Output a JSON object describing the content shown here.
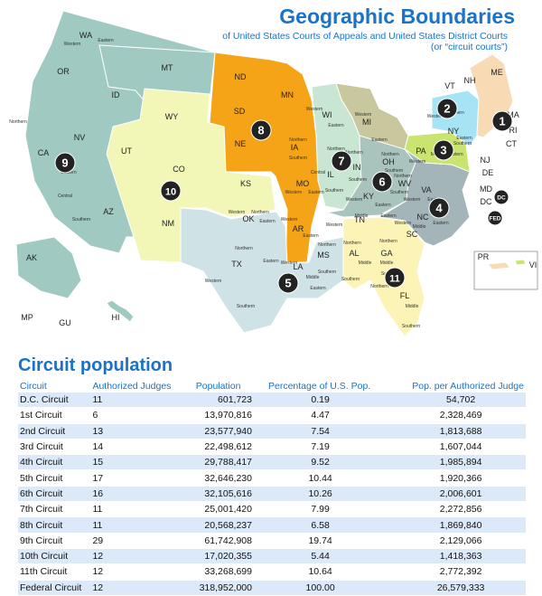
{
  "map": {
    "title": "Geographic Boundaries",
    "subtitle_line1": "of United States Courts of Appeals and United States District Courts",
    "subtitle_line2": "(or “circuit courts”)",
    "colors": {
      "c1": "#f8dab4",
      "c2": "#a6e3f5",
      "c3": "#c9e56f",
      "c4": "#a3b5b8",
      "c5": "#cfe2e5",
      "c6": "#a9c4bd",
      "c7": "#c9e6d2",
      "c8": "#f6a417",
      "c9": "#9fc9c1",
      "c10": "#f2f7b7",
      "c11": "#fbf4b6",
      "c7b": "#c8c79e",
      "badge": "#222222",
      "badge_text": "#ffffff"
    },
    "state_labels": [
      {
        "id": "WA",
        "text": "WA"
      },
      {
        "id": "OR",
        "text": "OR"
      },
      {
        "id": "CA",
        "text": "CA"
      },
      {
        "id": "NV",
        "text": "NV"
      },
      {
        "id": "ID",
        "text": "ID"
      },
      {
        "id": "MT",
        "text": "MT"
      },
      {
        "id": "WY",
        "text": "WY"
      },
      {
        "id": "UT",
        "text": "UT"
      },
      {
        "id": "AZ",
        "text": "AZ"
      },
      {
        "id": "CO",
        "text": "CO"
      },
      {
        "id": "NM",
        "text": "NM"
      },
      {
        "id": "ND",
        "text": "ND"
      },
      {
        "id": "SD",
        "text": "SD"
      },
      {
        "id": "NE",
        "text": "NE"
      },
      {
        "id": "KS",
        "text": "KS"
      },
      {
        "id": "OK",
        "text": "OK"
      },
      {
        "id": "TX",
        "text": "TX"
      },
      {
        "id": "MN",
        "text": "MN"
      },
      {
        "id": "IA",
        "text": "IA"
      },
      {
        "id": "MO",
        "text": "MO"
      },
      {
        "id": "AR",
        "text": "AR"
      },
      {
        "id": "LA",
        "text": "LA"
      },
      {
        "id": "WI",
        "text": "WI"
      },
      {
        "id": "IL",
        "text": "IL"
      },
      {
        "id": "MI",
        "text": "MI"
      },
      {
        "id": "IN",
        "text": "IN"
      },
      {
        "id": "OH",
        "text": "OH"
      },
      {
        "id": "KY",
        "text": "KY"
      },
      {
        "id": "TN",
        "text": "TN"
      },
      {
        "id": "MS",
        "text": "MS"
      },
      {
        "id": "AL",
        "text": "AL"
      },
      {
        "id": "GA",
        "text": "GA"
      },
      {
        "id": "FL",
        "text": "FL"
      },
      {
        "id": "SC",
        "text": "SC"
      },
      {
        "id": "NC",
        "text": "NC"
      },
      {
        "id": "VA",
        "text": "VA"
      },
      {
        "id": "WV",
        "text": "WV"
      },
      {
        "id": "PA",
        "text": "PA"
      },
      {
        "id": "NY",
        "text": "NY"
      },
      {
        "id": "VT",
        "text": "VT"
      },
      {
        "id": "NH",
        "text": "NH"
      },
      {
        "id": "ME",
        "text": "ME"
      },
      {
        "id": "MA",
        "text": "MA"
      },
      {
        "id": "RI",
        "text": "RI"
      },
      {
        "id": "CT",
        "text": "CT"
      },
      {
        "id": "NJ",
        "text": "NJ"
      },
      {
        "id": "DE",
        "text": "DE"
      },
      {
        "id": "MD",
        "text": "MD"
      },
      {
        "id": "DC",
        "text": "DC"
      },
      {
        "id": "AK",
        "text": "AK"
      },
      {
        "id": "HI",
        "text": "HI"
      },
      {
        "id": "PR",
        "text": "PR"
      },
      {
        "id": "VI",
        "text": "VI"
      },
      {
        "id": "MP",
        "text": "MP"
      },
      {
        "id": "GU",
        "text": "GU"
      }
    ],
    "district_labels": [
      {
        "id": "wa-e",
        "text": "Eastern"
      },
      {
        "id": "wa-w",
        "text": "Western"
      },
      {
        "id": "ca-n",
        "text": "Northern"
      },
      {
        "id": "ca-e",
        "text": "Eastern"
      },
      {
        "id": "ca-c",
        "text": "Central"
      },
      {
        "id": "ca-s",
        "text": "Southern"
      },
      {
        "id": "ok-w",
        "text": "Western"
      },
      {
        "id": "ok-n",
        "text": "Northern"
      },
      {
        "id": "ok-e",
        "text": "Eastern"
      },
      {
        "id": "tx-n",
        "text": "Northern"
      },
      {
        "id": "tx-w",
        "text": "Western"
      },
      {
        "id": "tx-e",
        "text": "Eastern"
      },
      {
        "id": "tx-s",
        "text": "Southern"
      },
      {
        "id": "ia-n",
        "text": "Northern"
      },
      {
        "id": "ia-s",
        "text": "Southern"
      },
      {
        "id": "mo-w",
        "text": "Western"
      },
      {
        "id": "mo-e",
        "text": "Eastern"
      },
      {
        "id": "ar-w",
        "text": "Western"
      },
      {
        "id": "ar-e",
        "text": "Eastern"
      },
      {
        "id": "la-w",
        "text": "Western"
      },
      {
        "id": "la-m",
        "text": "Middle"
      },
      {
        "id": "la-e",
        "text": "Eastern"
      },
      {
        "id": "wi-w",
        "text": "Western"
      },
      {
        "id": "wi-e",
        "text": "Eastern"
      },
      {
        "id": "il-n",
        "text": "Northern"
      },
      {
        "id": "il-c",
        "text": "Central"
      },
      {
        "id": "il-s",
        "text": "Southern"
      },
      {
        "id": "mi-w",
        "text": "Western"
      },
      {
        "id": "mi-e",
        "text": "Eastern"
      },
      {
        "id": "in-n",
        "text": "Northern"
      },
      {
        "id": "in-s",
        "text": "Southern"
      },
      {
        "id": "oh-n",
        "text": "Northern"
      },
      {
        "id": "oh-s",
        "text": "Southern"
      },
      {
        "id": "ky-w",
        "text": "Western"
      },
      {
        "id": "ky-e",
        "text": "Eastern"
      },
      {
        "id": "tn-w",
        "text": "Western"
      },
      {
        "id": "tn-m",
        "text": "Middle"
      },
      {
        "id": "tn-e",
        "text": "Eastern"
      },
      {
        "id": "ms-n",
        "text": "Northern"
      },
      {
        "id": "ms-s",
        "text": "Southern"
      },
      {
        "id": "al-n",
        "text": "Northern"
      },
      {
        "id": "al-m",
        "text": "Middle"
      },
      {
        "id": "al-s",
        "text": "Southern"
      },
      {
        "id": "ga-n",
        "text": "Northern"
      },
      {
        "id": "ga-m",
        "text": "Middle"
      },
      {
        "id": "ga-s",
        "text": "Southern"
      },
      {
        "id": "fl-n",
        "text": "Northern"
      },
      {
        "id": "fl-m",
        "text": "Middle"
      },
      {
        "id": "fl-s",
        "text": "Southern"
      },
      {
        "id": "nc-w",
        "text": "Western"
      },
      {
        "id": "nc-m",
        "text": "Middle"
      },
      {
        "id": "nc-e",
        "text": "Eastern"
      },
      {
        "id": "va-w",
        "text": "Western"
      },
      {
        "id": "va-e",
        "text": "Eastern"
      },
      {
        "id": "wv-n",
        "text": "Northern"
      },
      {
        "id": "wv-s",
        "text": "Southern"
      },
      {
        "id": "pa-w",
        "text": "Western"
      },
      {
        "id": "pa-m",
        "text": "Middle"
      },
      {
        "id": "pa-e",
        "text": "Eastern"
      },
      {
        "id": "ny-w",
        "text": "Western"
      },
      {
        "id": "ny-n",
        "text": "Northern"
      },
      {
        "id": "ny-e",
        "text": "Eastern"
      },
      {
        "id": "ny-s",
        "text": "Southern"
      }
    ],
    "circuit_badges": [
      {
        "id": "b1",
        "text": "1"
      },
      {
        "id": "b2",
        "text": "2"
      },
      {
        "id": "b3",
        "text": "3"
      },
      {
        "id": "b4",
        "text": "4"
      },
      {
        "id": "b5",
        "text": "5"
      },
      {
        "id": "b6",
        "text": "6"
      },
      {
        "id": "b7",
        "text": "7"
      },
      {
        "id": "b8",
        "text": "8"
      },
      {
        "id": "b9",
        "text": "9"
      },
      {
        "id": "b10",
        "text": "10"
      },
      {
        "id": "b11",
        "text": "11"
      },
      {
        "id": "bdc",
        "text": "DC"
      },
      {
        "id": "bfed",
        "text": "FED"
      }
    ]
  },
  "table": {
    "title": "Circuit population",
    "headers": [
      "Circuit",
      "Authorized Judges",
      "Population",
      "Percentage of U.S. Pop.",
      "Pop. per Authorized Judge"
    ],
    "rows": [
      [
        "D.C. Circuit",
        "11",
        "601,723",
        "0.19",
        "54,702"
      ],
      [
        "1st Circuit",
        "6",
        "13,970,816",
        "4.47",
        "2,328,469"
      ],
      [
        "2nd Circuit",
        "13",
        "23,577,940",
        "7.54",
        "1,813,688"
      ],
      [
        "3rd Circuit",
        "14",
        "22,498,612",
        "7.19",
        "1,607,044"
      ],
      [
        "4th Circuit",
        "15",
        "29,788,417",
        "9.52",
        "1,985,894"
      ],
      [
        "5th Circuit",
        "17",
        "32,646,230",
        "10.44",
        "1,920,366"
      ],
      [
        "6th Circuit",
        "16",
        "32,105,616",
        "10.26",
        "2,006,601"
      ],
      [
        "7th Circuit",
        "11",
        "25,001,420",
        "7.99",
        "2,272,856"
      ],
      [
        "8th Circuit",
        "11",
        "20,568,237",
        "6.58",
        "1,869,840"
      ],
      [
        "9th Circuit",
        "29",
        "61,742,908",
        "19.74",
        "2,129,066"
      ],
      [
        "10th Circuit",
        "12",
        "17,020,355",
        "5.44",
        "1,418,363"
      ],
      [
        "11th Circuit",
        "12",
        "33,268,699",
        "10.64",
        "2,772,392"
      ],
      [
        "Federal Circuit",
        "12",
        "318,952,000",
        "100.00",
        "26,579,333"
      ]
    ]
  }
}
